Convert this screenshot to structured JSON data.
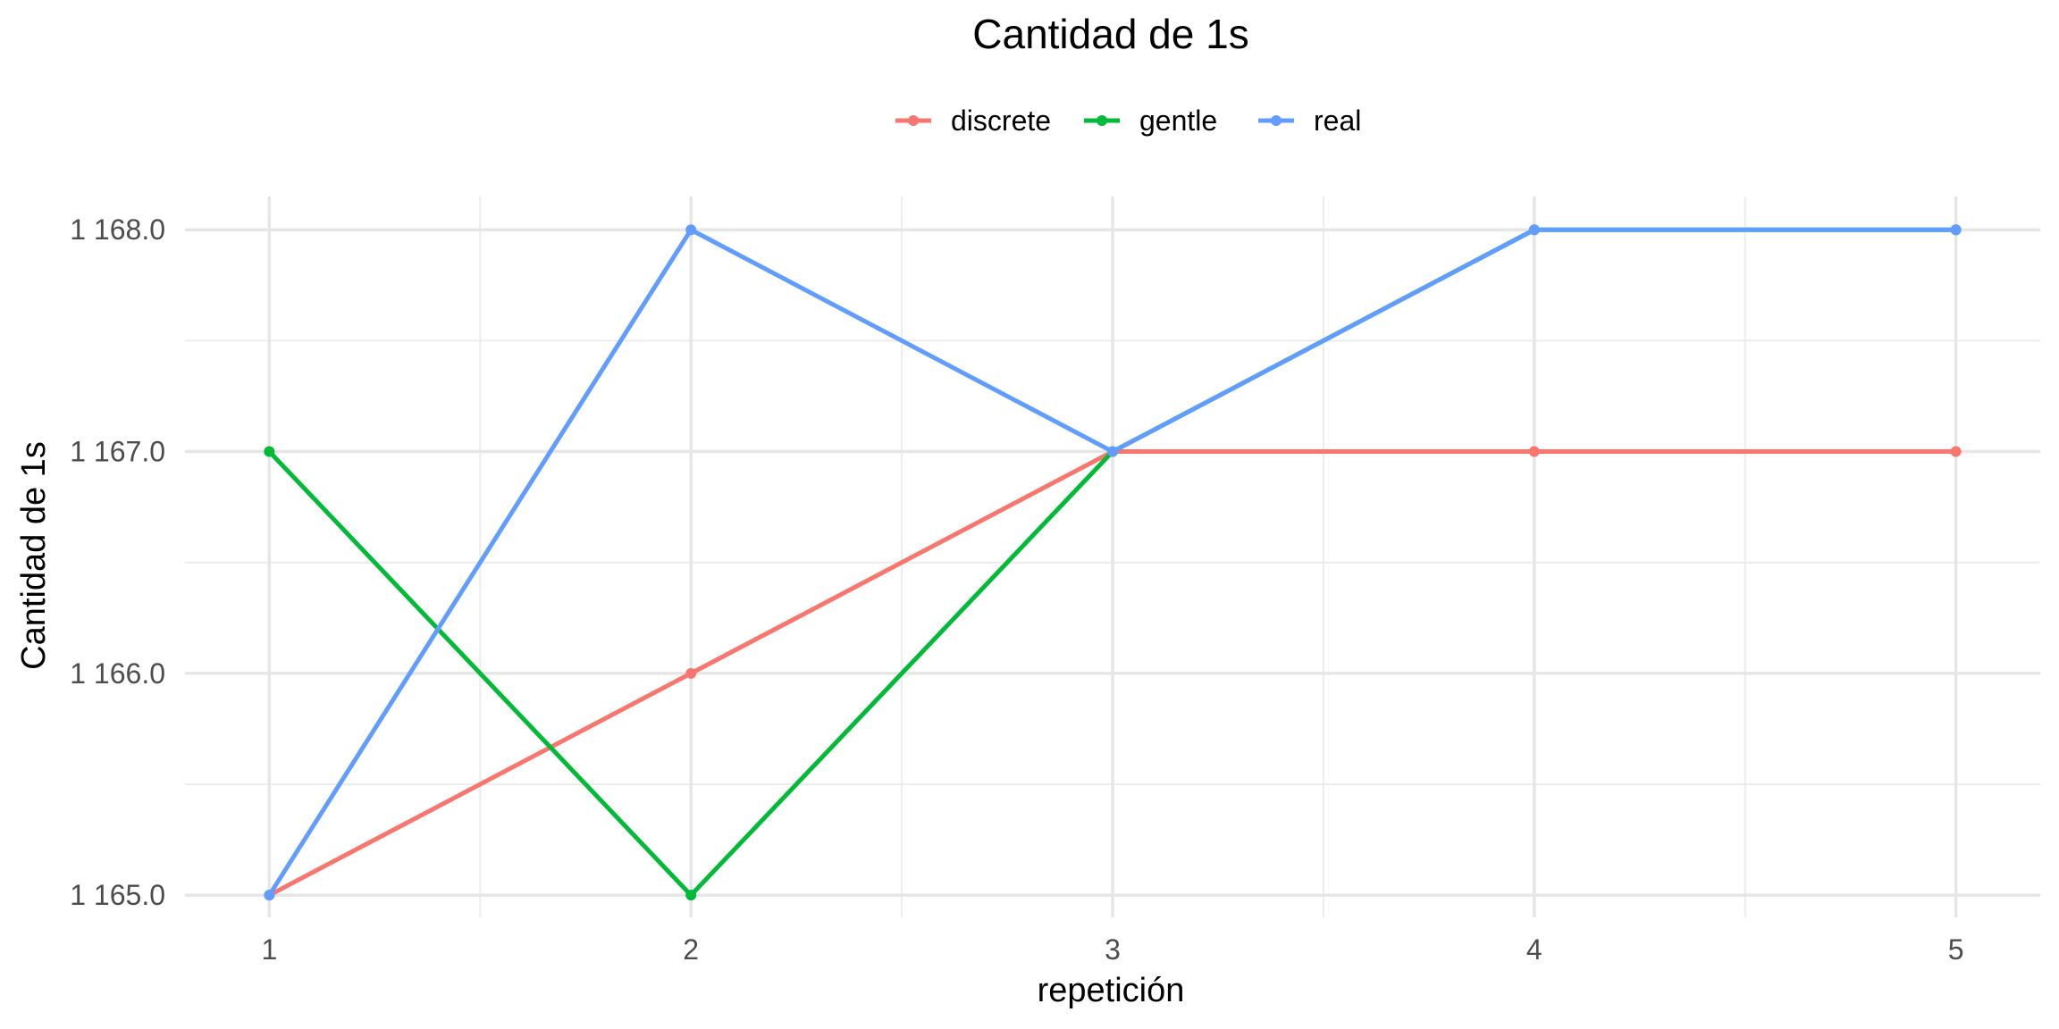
{
  "chart_data": {
    "type": "line",
    "title": "Cantidad de 1s",
    "xlabel": "repetición",
    "ylabel": "Cantidad de 1s",
    "x": [
      1,
      2,
      3,
      4,
      5
    ],
    "xlim": [
      0.8,
      5.2
    ],
    "ylim": [
      1164.9,
      1168.15
    ],
    "x_ticks": [
      "1",
      "2",
      "3",
      "4",
      "5"
    ],
    "y_ticks": [
      {
        "value": 1165,
        "label": "1 165.0"
      },
      {
        "value": 1166,
        "label": "1 166.0"
      },
      {
        "value": 1167,
        "label": "1 167.0"
      },
      {
        "value": 1168,
        "label": "1 168.0"
      }
    ],
    "grid": true,
    "legend_position": "top",
    "series": [
      {
        "name": "discrete",
        "color": "#F8766D",
        "values": [
          1165,
          1166,
          1167,
          1167,
          1167
        ]
      },
      {
        "name": "gentle",
        "color": "#00BA38",
        "values": [
          1167,
          1165,
          1167,
          1168,
          1168
        ]
      },
      {
        "name": "real",
        "color": "#619CFF",
        "values": [
          1165,
          1168,
          1167,
          1168,
          1168
        ]
      }
    ]
  }
}
